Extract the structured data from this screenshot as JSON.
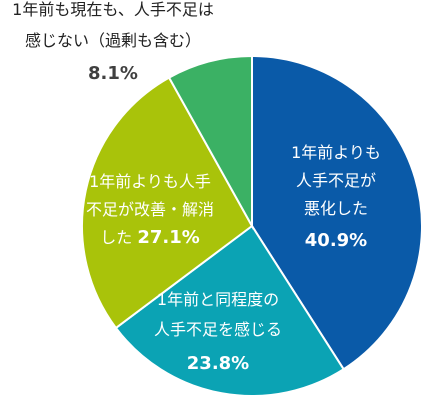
{
  "chart_data": {
    "type": "pie",
    "start": "12 o'clock, clockwise",
    "categories": [
      "1年前よりも人手不足が悪化した",
      "1年前と同程度の人手不足を感じる",
      "1年前よりも人手不足が改善・解消した",
      "1年前も現在も、人手不足は感じない（過剰も含む）"
    ],
    "values": [
      40.9,
      23.8,
      27.1,
      8.1
    ],
    "value_labels": [
      "40.9%",
      "23.8%",
      "27.1%",
      "8.1%"
    ],
    "colors": [
      "#0a5aa8",
      "#0ba3b4",
      "#a9c30a",
      "#3bb164"
    ],
    "label_colors": [
      "#ffffff",
      "#ffffff",
      "#ffffff",
      "#404040"
    ],
    "labels": [
      {
        "lines": [
          "1年前よりも",
          "人手不足が",
          "悪化した"
        ],
        "pct": "40.9%"
      },
      {
        "lines": [
          "1年前と同程度の",
          "人手不足を感じる"
        ],
        "pct": "23.8%"
      },
      {
        "lines": [
          "1年前よりも人手",
          "不足が改善・解消",
          "した"
        ],
        "pct": "27.1%"
      },
      {
        "lines": [
          "1年前も現在も、人手不足は",
          "感じない（過剰も含む）"
        ],
        "pct": "8.1%"
      }
    ]
  }
}
